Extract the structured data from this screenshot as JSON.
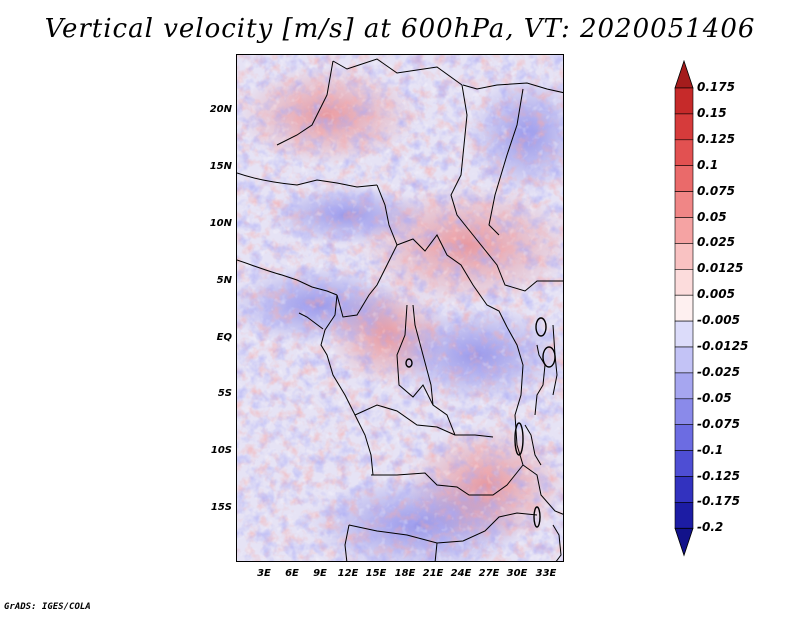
{
  "title": "Vertical velocity [m/s] at 600hPa, VT: 2020051406",
  "credit": "GrADS: IGES/COLA",
  "latitude_labels": [
    "20N",
    "15N",
    "10N",
    "5N",
    "EQ",
    "5S",
    "10S",
    "15S"
  ],
  "longitude_labels": [
    "3E",
    "6E",
    "9E",
    "12E",
    "15E",
    "18E",
    "21E",
    "24E",
    "27E",
    "30E",
    "33E"
  ],
  "colorbar": {
    "labels": [
      "0.175",
      "0.15",
      "0.125",
      "0.1",
      "0.075",
      "0.05",
      "0.025",
      "0.0125",
      "0.005",
      "-0.005",
      "-0.0125",
      "-0.025",
      "-0.05",
      "-0.075",
      "-0.1",
      "-0.125",
      "-0.175",
      "-0.2"
    ],
    "colors": [
      "#a41c1c",
      "#c62a2a",
      "#d63b3b",
      "#e25151",
      "#ea6a6a",
      "#f08686",
      "#f5a3a3",
      "#f9c2c2",
      "#fcdcdc",
      "#fef0f0",
      "#dcdcfa",
      "#c3c3f6",
      "#a6a6f0",
      "#8a8aea",
      "#6c6ce2",
      "#4e4ed4",
      "#3232bf",
      "#1c1ca4",
      "#12128a"
    ]
  },
  "map": {
    "variable": "Vertical velocity",
    "units": "m/s",
    "level": "600hPa",
    "valid_time": "2020051406"
  }
}
